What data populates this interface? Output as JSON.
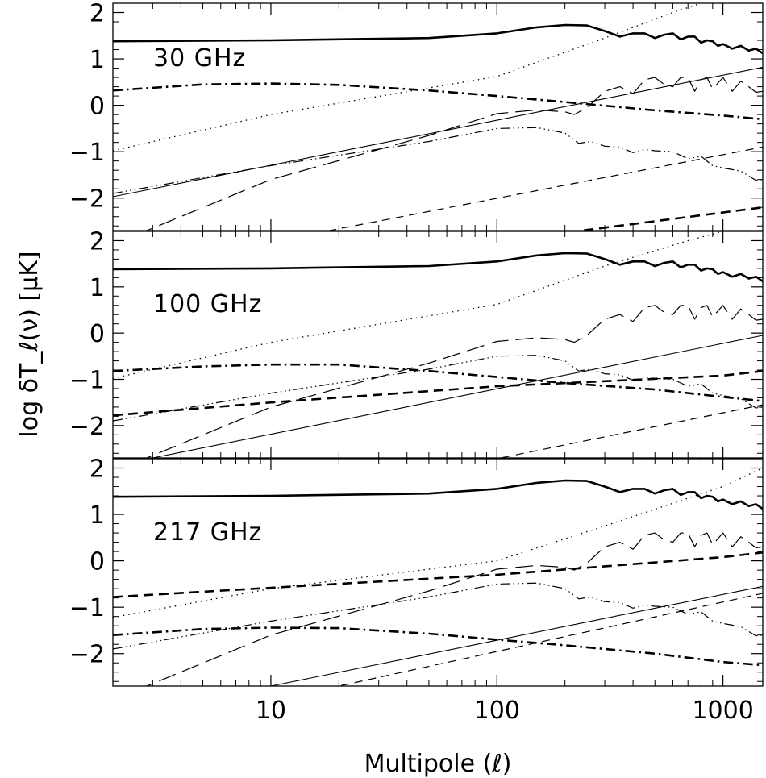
{
  "chart_data": {
    "type": "line",
    "xlabel": "Multipole (ℓ)",
    "ylabel": "log δT_ℓ(ν) [μK]",
    "x_scale": "log",
    "xlim": [
      2,
      1500
    ],
    "ylim": [
      -2.7,
      2.2
    ],
    "x_ticks": [
      {
        "value": 10,
        "label": "10"
      },
      {
        "value": 100,
        "label": "100"
      },
      {
        "value": 1000,
        "label": "1000"
      }
    ],
    "y_ticks": [
      {
        "value": 2,
        "label": "2"
      },
      {
        "value": 1,
        "label": "1"
      },
      {
        "value": 0,
        "label": "0"
      },
      {
        "value": -1,
        "label": "−1"
      },
      {
        "value": -2,
        "label": "−2"
      }
    ],
    "grid": false,
    "panels": [
      {
        "label": "30 GHz",
        "series": [
          {
            "style": "thick-solid",
            "x": [
              2,
              10,
              50,
              100,
              150,
              200,
              250,
              300,
              350,
              400,
              450,
              500,
              550,
              600,
              650,
              700,
              750,
              800,
              850,
              900,
              950,
              1000,
              1100,
              1200,
              1300,
              1400,
              1500
            ],
            "y": [
              1.38,
              1.4,
              1.45,
              1.55,
              1.68,
              1.73,
              1.72,
              1.6,
              1.48,
              1.55,
              1.55,
              1.45,
              1.52,
              1.55,
              1.42,
              1.48,
              1.48,
              1.35,
              1.4,
              1.38,
              1.28,
              1.32,
              1.22,
              1.28,
              1.18,
              1.22,
              1.12
            ]
          },
          {
            "style": "dotted",
            "x": [
              2,
              10,
              100,
              300,
              600,
              800
            ],
            "y": [
              -0.98,
              -0.2,
              0.62,
              1.45,
              2.0,
              2.2
            ]
          },
          {
            "style": "thick-dash-dot",
            "x": [
              2,
              5,
              10,
              20,
              50,
              100,
              200,
              500,
              1000,
              1500
            ],
            "y": [
              0.32,
              0.45,
              0.47,
              0.44,
              0.32,
              0.2,
              0.07,
              -0.11,
              -0.22,
              -0.3
            ]
          },
          {
            "style": "long-dash",
            "x": [
              2,
              10,
              50,
              100,
              150,
              200,
              220,
              250,
              300,
              350,
              400,
              450,
              500,
              550,
              600,
              650,
              700,
              750,
              800,
              850,
              900,
              1000,
              1100,
              1200,
              1300,
              1400,
              1500
            ],
            "y": [
              -3.0,
              -1.6,
              -0.65,
              -0.18,
              -0.1,
              -0.14,
              -0.2,
              -0.05,
              0.3,
              0.4,
              0.25,
              0.55,
              0.6,
              0.45,
              0.4,
              0.6,
              0.6,
              0.3,
              0.55,
              0.6,
              0.35,
              0.6,
              0.3,
              0.52,
              0.4,
              0.28,
              0.3
            ]
          },
          {
            "style": "dash-triple-dot",
            "x": [
              2,
              10,
              50,
              100,
              150,
              200,
              230,
              260,
              300,
              350,
              400,
              450,
              500,
              600,
              700,
              800,
              900,
              1000,
              1200,
              1400,
              1500
            ],
            "y": [
              -1.9,
              -1.3,
              -0.78,
              -0.5,
              -0.48,
              -0.6,
              -0.82,
              -0.78,
              -0.88,
              -0.9,
              -1.02,
              -0.95,
              -0.98,
              -1.0,
              -1.15,
              -1.1,
              -1.3,
              -1.35,
              -1.42,
              -1.62,
              -1.6
            ]
          },
          {
            "style": "thin-solid",
            "x": [
              2,
              1500
            ],
            "y": [
              -1.97,
              0.82
            ]
          },
          {
            "style": "thin-dash",
            "x": [
              2,
              1500
            ],
            "y": [
              -3.6,
              -0.9
            ]
          },
          {
            "style": "thick-dash",
            "x": [
              2,
              1500
            ],
            "y": [
              -4.0,
              -2.2
            ]
          }
        ]
      },
      {
        "label": "100 GHz",
        "series": [
          {
            "style": "thick-solid",
            "x": [
              2,
              10,
              50,
              100,
              150,
              200,
              250,
              300,
              350,
              400,
              450,
              500,
              550,
              600,
              650,
              700,
              750,
              800,
              850,
              900,
              950,
              1000,
              1100,
              1200,
              1300,
              1400,
              1500
            ],
            "y": [
              1.38,
              1.4,
              1.45,
              1.55,
              1.68,
              1.73,
              1.72,
              1.6,
              1.48,
              1.55,
              1.55,
              1.45,
              1.52,
              1.55,
              1.42,
              1.48,
              1.48,
              1.35,
              1.4,
              1.38,
              1.28,
              1.32,
              1.22,
              1.28,
              1.18,
              1.22,
              1.12
            ]
          },
          {
            "style": "dotted",
            "x": [
              2,
              10,
              100,
              300,
              700,
              1000
            ],
            "y": [
              -0.98,
              -0.2,
              0.62,
              1.45,
              2.0,
              2.2
            ]
          },
          {
            "style": "thick-dash-dot",
            "x": [
              2,
              5,
              10,
              20,
              50,
              100,
              200,
              500,
              1000,
              1500
            ],
            "y": [
              -0.82,
              -0.72,
              -0.68,
              -0.68,
              -0.82,
              -0.95,
              -1.08,
              -1.22,
              -1.38,
              -1.47
            ]
          },
          {
            "style": "long-dash",
            "x": [
              2,
              10,
              50,
              100,
              150,
              200,
              220,
              250,
              300,
              350,
              400,
              450,
              500,
              550,
              600,
              650,
              700,
              750,
              800,
              850,
              900,
              1000,
              1100,
              1200,
              1300,
              1400,
              1500
            ],
            "y": [
              -3.0,
              -1.6,
              -0.65,
              -0.18,
              -0.1,
              -0.14,
              -0.2,
              -0.05,
              0.3,
              0.4,
              0.25,
              0.55,
              0.6,
              0.45,
              0.4,
              0.6,
              0.6,
              0.3,
              0.55,
              0.6,
              0.35,
              0.6,
              0.3,
              0.52,
              0.4,
              0.28,
              0.3
            ]
          },
          {
            "style": "dash-triple-dot",
            "x": [
              2,
              10,
              50,
              100,
              150,
              200,
              230,
              260,
              300,
              350,
              400,
              450,
              500,
              600,
              700,
              800,
              900,
              1000,
              1200,
              1400,
              1500
            ],
            "y": [
              -1.9,
              -1.3,
              -0.78,
              -0.5,
              -0.48,
              -0.6,
              -0.82,
              -0.78,
              -0.88,
              -0.9,
              -1.02,
              -0.95,
              -0.98,
              -1.0,
              -1.15,
              -1.1,
              -1.3,
              -1.35,
              -1.42,
              -1.62,
              -1.6
            ]
          },
          {
            "style": "thin-solid",
            "x": [
              2,
              3,
              1500
            ],
            "y": [
              -2.9,
              -2.7,
              -0.05
            ]
          },
          {
            "style": "thin-dash",
            "x": [
              2,
              1500
            ],
            "y": [
              -4.4,
              -1.55
            ]
          },
          {
            "style": "thick-dash",
            "x": [
              2,
              10,
              100,
              1000,
              1500
            ],
            "y": [
              -1.78,
              -1.5,
              -1.15,
              -0.92,
              -0.82
            ]
          }
        ]
      },
      {
        "label": "217 GHz",
        "series": [
          {
            "style": "thick-solid",
            "x": [
              2,
              10,
              50,
              100,
              150,
              200,
              250,
              300,
              350,
              400,
              450,
              500,
              550,
              600,
              650,
              700,
              750,
              800,
              850,
              900,
              950,
              1000,
              1100,
              1200,
              1300,
              1400,
              1500
            ],
            "y": [
              1.38,
              1.4,
              1.45,
              1.55,
              1.68,
              1.73,
              1.72,
              1.6,
              1.48,
              1.55,
              1.55,
              1.45,
              1.52,
              1.55,
              1.42,
              1.48,
              1.48,
              1.35,
              1.4,
              1.38,
              1.28,
              1.32,
              1.22,
              1.28,
              1.18,
              1.22,
              1.12
            ]
          },
          {
            "style": "dotted",
            "x": [
              2,
              10,
              100,
              300,
              1000,
              1500
            ],
            "y": [
              -1.22,
              -0.6,
              0.0,
              0.75,
              1.6,
              2.0
            ]
          },
          {
            "style": "thick-dash-dot",
            "x": [
              2,
              5,
              10,
              20,
              50,
              100,
              200,
              500,
              1000,
              1500
            ],
            "y": [
              -1.6,
              -1.47,
              -1.44,
              -1.45,
              -1.57,
              -1.7,
              -1.82,
              -2.0,
              -2.18,
              -2.25
            ]
          },
          {
            "style": "long-dash",
            "x": [
              2,
              10,
              50,
              100,
              150,
              200,
              220,
              250,
              300,
              350,
              400,
              450,
              500,
              550,
              600,
              650,
              700,
              750,
              800,
              850,
              900,
              1000,
              1100,
              1200,
              1300,
              1400,
              1500
            ],
            "y": [
              -3.0,
              -1.6,
              -0.65,
              -0.18,
              -0.1,
              -0.14,
              -0.2,
              -0.05,
              0.3,
              0.4,
              0.25,
              0.55,
              0.6,
              0.45,
              0.4,
              0.6,
              0.6,
              0.3,
              0.55,
              0.6,
              0.35,
              0.6,
              0.3,
              0.52,
              0.4,
              0.28,
              0.3
            ]
          },
          {
            "style": "dash-triple-dot",
            "x": [
              2,
              10,
              50,
              100,
              150,
              200,
              230,
              260,
              300,
              350,
              400,
              450,
              500,
              600,
              700,
              800,
              900,
              1000,
              1200,
              1400,
              1500
            ],
            "y": [
              -1.9,
              -1.3,
              -0.78,
              -0.5,
              -0.48,
              -0.6,
              -0.82,
              -0.78,
              -0.88,
              -0.9,
              -1.02,
              -0.95,
              -0.98,
              -1.0,
              -1.15,
              -1.1,
              -1.3,
              -1.35,
              -1.42,
              -1.62,
              -1.6
            ]
          },
          {
            "style": "thin-solid",
            "x": [
              2,
              10,
              1500
            ],
            "y": [
              -3.9,
              -2.7,
              -0.55
            ]
          },
          {
            "style": "thin-dash",
            "x": [
              2,
              20,
              1500
            ],
            "y": [
              -3.7,
              -2.7,
              -0.7
            ]
          },
          {
            "style": "thick-dash",
            "x": [
              2,
              10,
              100,
              1000,
              1500
            ],
            "y": [
              -0.78,
              -0.58,
              -0.3,
              0.08,
              0.18
            ]
          }
        ]
      }
    ]
  }
}
